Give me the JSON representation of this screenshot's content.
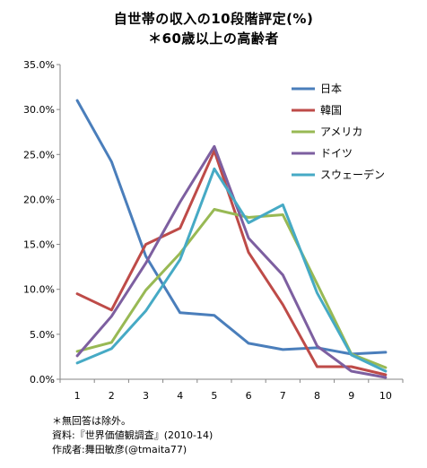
{
  "title_line1": "自世帯の収入の10段階評定(%)",
  "title_line2": "＊60歳以上の高齢者",
  "notes": {
    "line1": "＊無回答は除外。",
    "line2": "資料:『世界価値観調査』(2010-14)",
    "line3": "作成者:舞田敏彦(@tmaita77)"
  },
  "chart_data": {
    "type": "line",
    "title": "自世帯の収入の10段階評定(%)",
    "subtitle": "＊60歳以上の高齢者",
    "x": [
      1,
      2,
      3,
      4,
      5,
      6,
      7,
      8,
      9,
      10
    ],
    "x_tick_labels": [
      "1",
      "2",
      "3",
      "4",
      "5",
      "6",
      "7",
      "8",
      "9",
      "10"
    ],
    "ylim": [
      0,
      35
    ],
    "y_ticks": [
      0,
      5,
      10,
      15,
      20,
      25,
      30,
      35
    ],
    "y_tick_labels": [
      "0.0%",
      "5.0%",
      "10.0%",
      "15.0%",
      "20.0%",
      "25.0%",
      "30.0%",
      "35.0%"
    ],
    "grid": false,
    "legend_position": "top-right",
    "series": [
      {
        "name": "日本",
        "color": "#4A7EBB",
        "values": [
          31.0,
          24.2,
          13.7,
          7.4,
          7.1,
          4.0,
          3.3,
          3.5,
          2.8,
          3.0
        ]
      },
      {
        "name": "韓国",
        "color": "#BE4B48",
        "values": [
          9.5,
          7.7,
          15.0,
          16.8,
          25.4,
          14.1,
          8.3,
          1.4,
          1.4,
          0.5
        ]
      },
      {
        "name": "アメリカ",
        "color": "#98B954",
        "values": [
          3.1,
          4.1,
          9.9,
          14.0,
          18.9,
          18.0,
          18.3,
          10.6,
          2.8,
          1.3
        ]
      },
      {
        "name": "ドイツ",
        "color": "#7D5FA0",
        "values": [
          2.6,
          7.0,
          12.9,
          19.7,
          25.9,
          15.7,
          11.6,
          3.7,
          0.9,
          0.2
        ]
      },
      {
        "name": "スウェーデン",
        "color": "#46AAC5",
        "values": [
          1.8,
          3.4,
          7.6,
          13.3,
          23.4,
          17.4,
          19.4,
          9.6,
          2.7,
          0.9
        ]
      }
    ]
  }
}
